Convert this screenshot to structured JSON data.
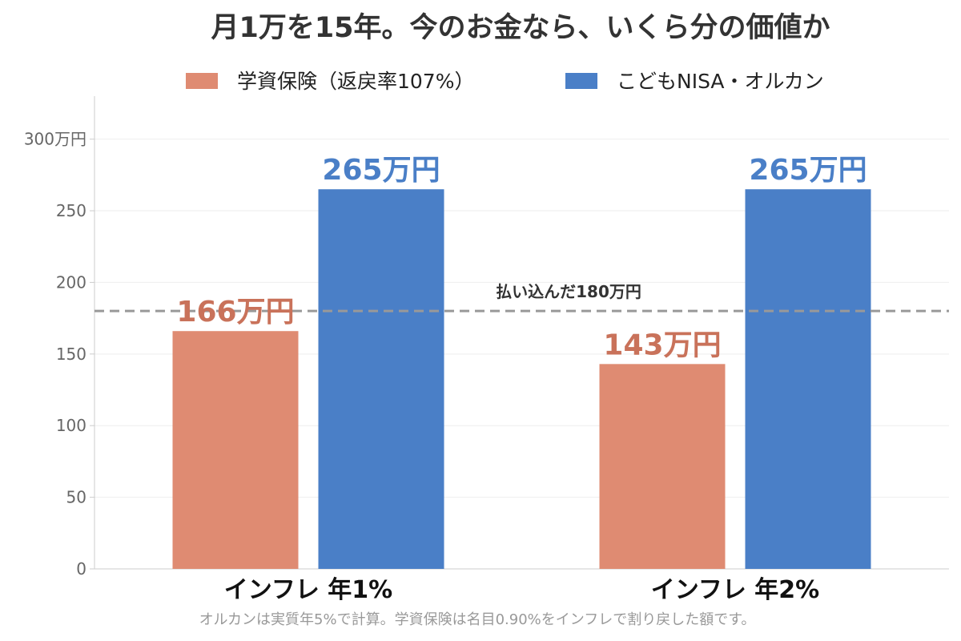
{
  "colors": {
    "insurance": "#df8b72",
    "insurance_label": "#c9725a",
    "nisa": "#4a7fc7",
    "nisa_label": "#4a7fc7",
    "reference": "#999999",
    "grid": "#eeeeee",
    "axis": "#cccccc"
  },
  "chart_data": {
    "type": "bar",
    "title": "月1万を15年。今のお金なら、いくら分の価値か",
    "categories": [
      "インフレ 年1%",
      "インフレ 年2%"
    ],
    "series": [
      {
        "name": "学資保険（返戻率107%）",
        "values": [
          166,
          143
        ],
        "labels": [
          "166万円",
          "143万円"
        ]
      },
      {
        "name": "こどもNISA・オルカン",
        "values": [
          265,
          265
        ],
        "labels": [
          "265万円",
          "265万円"
        ]
      }
    ],
    "ylim": [
      0,
      330
    ],
    "yticks": [
      0,
      50,
      100,
      150,
      200,
      250,
      300
    ],
    "ytick_labels": [
      "0",
      "50",
      "100",
      "150",
      "200",
      "250",
      "300万円"
    ],
    "reference_line": {
      "value": 180,
      "label": "払い込んだ180万円",
      "style": "dashed"
    },
    "legend_position": "top-center",
    "grid": true,
    "footnote": "オルカンは実質年5%で計算。学資保険は名目0.90%をインフレで割り戻した額です。"
  }
}
